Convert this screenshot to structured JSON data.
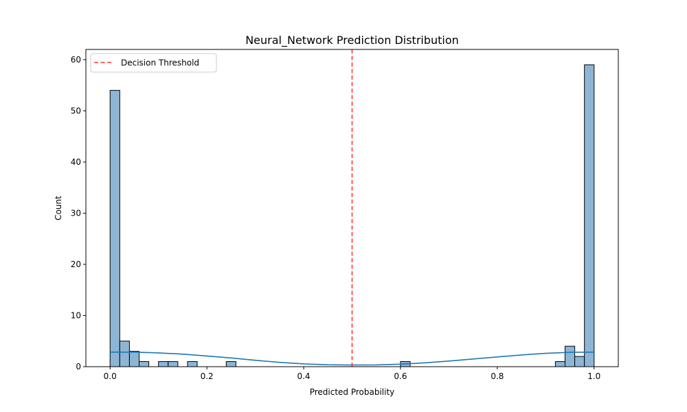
{
  "chart_data": {
    "type": "bar",
    "title": "Neural_Network Prediction Distribution",
    "xlabel": "Predicted Probability",
    "ylabel": "Count",
    "xlim": [
      -0.05,
      1.05
    ],
    "ylim": [
      0,
      62
    ],
    "xticks": [
      0.0,
      0.2,
      0.4,
      0.6,
      0.8,
      1.0
    ],
    "xtick_labels": [
      "0.0",
      "0.2",
      "0.4",
      "0.6",
      "0.8",
      "1.0"
    ],
    "yticks": [
      0,
      10,
      20,
      30,
      40,
      50,
      60
    ],
    "ytick_labels": [
      "0",
      "10",
      "20",
      "30",
      "40",
      "50",
      "60"
    ],
    "grid": false,
    "legend_position": "top-left",
    "bar_fill_color": "#8db6d6",
    "bar_edge_color": "#000000",
    "kde_color": "#1f77b4",
    "threshold_color": "#ff3333",
    "bins": {
      "start": 0.0,
      "width": 0.02,
      "counts": [
        54,
        5,
        3,
        1,
        0,
        1,
        1,
        0,
        1,
        0,
        0,
        0,
        1,
        0,
        0,
        0,
        0,
        0,
        0,
        0,
        0,
        0,
        0,
        0,
        0,
        0,
        0,
        0,
        0,
        0,
        1,
        0,
        0,
        0,
        0,
        0,
        0,
        0,
        0,
        0,
        0,
        0,
        0,
        0,
        0,
        0,
        1,
        4,
        2,
        59
      ]
    },
    "kde": {
      "x": [
        0.0,
        0.05,
        0.1,
        0.15,
        0.2,
        0.25,
        0.3,
        0.35,
        0.4,
        0.45,
        0.5,
        0.55,
        0.6,
        0.65,
        0.7,
        0.75,
        0.8,
        0.85,
        0.9,
        0.95,
        1.0
      ],
      "y": [
        2.85,
        2.85,
        2.7,
        2.45,
        2.1,
        1.7,
        1.25,
        0.85,
        0.55,
        0.38,
        0.32,
        0.35,
        0.5,
        0.75,
        1.1,
        1.5,
        1.9,
        2.3,
        2.6,
        2.8,
        2.85
      ]
    },
    "threshold": {
      "x": 0.5,
      "label": "Decision Threshold"
    }
  }
}
